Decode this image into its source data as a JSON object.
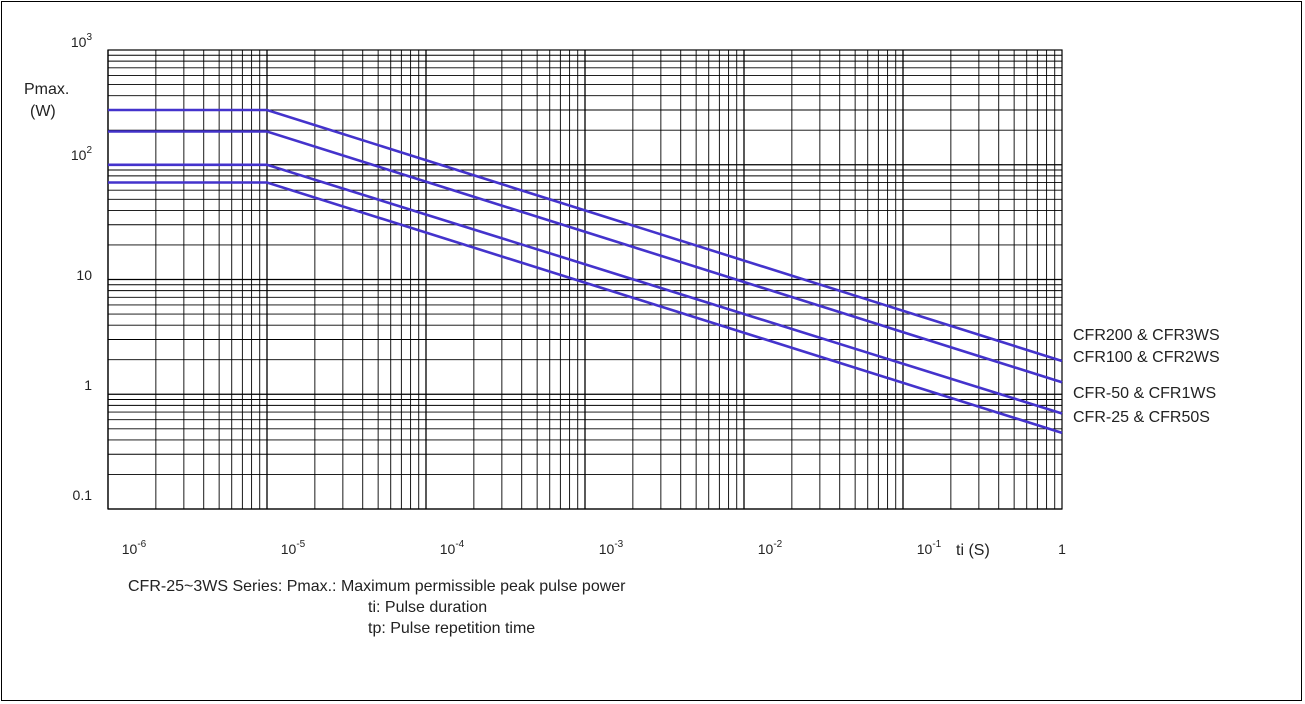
{
  "chart_data": {
    "type": "line",
    "x_scale": "log",
    "y_scale": "log",
    "xlim": [
      1e-06,
      1
    ],
    "ylim": [
      0.1,
      1000
    ],
    "ylabel_line1": "Pmax.",
    "ylabel_line2": "(W)",
    "xlabel": "ti (S)",
    "x_ticks": [
      {
        "value": 1e-06,
        "base": "10",
        "exp": "-6"
      },
      {
        "value": 1e-05,
        "base": "10",
        "exp": "-5"
      },
      {
        "value": 0.0001,
        "base": "10",
        "exp": "-4"
      },
      {
        "value": 0.001,
        "base": "10",
        "exp": "-3"
      },
      {
        "value": 0.01,
        "base": "10",
        "exp": "-2"
      },
      {
        "value": 0.1,
        "base": "10",
        "exp": "-1"
      },
      {
        "value": 1,
        "base": "1",
        "exp": ""
      }
    ],
    "y_ticks": [
      {
        "value": 1000,
        "base": "10",
        "exp": "3"
      },
      {
        "value": 100,
        "base": "10",
        "exp": "2"
      },
      {
        "value": 10,
        "base": "10",
        "exp": ""
      },
      {
        "value": 1,
        "base": "1",
        "exp": ""
      },
      {
        "value": 0.1,
        "base": "0.1",
        "exp": ""
      }
    ],
    "grid": true,
    "line_color": "#4433cc",
    "series": [
      {
        "name": "CFR200 & CFR3WS",
        "x": [
          1e-06,
          1e-05,
          1
        ],
        "y": [
          300,
          300,
          1.95
        ]
      },
      {
        "name": "CFR100 & CFR2WS",
        "x": [
          1e-06,
          1e-05,
          1
        ],
        "y": [
          195,
          195,
          1.27
        ]
      },
      {
        "name": "CFR-50 & CFR1WS",
        "x": [
          1e-06,
          1e-05,
          1
        ],
        "y": [
          100,
          100,
          0.68
        ]
      },
      {
        "name": "CFR-25 & CFR50S",
        "x": [
          1e-06,
          1e-05,
          1
        ],
        "y": [
          70,
          70,
          0.46
        ]
      }
    ]
  },
  "caption": {
    "line1": "CFR-25~3WS Series: Pmax.: Maximum permissible peak pulse power",
    "line2": "ti: Pulse duration",
    "line3": "tp: Pulse repetition time"
  }
}
